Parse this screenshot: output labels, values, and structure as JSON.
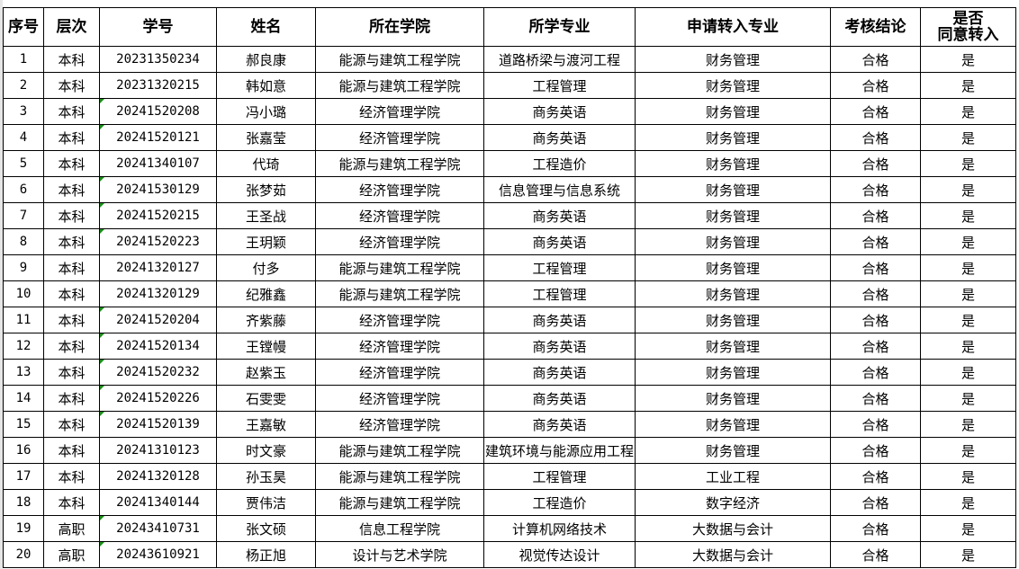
{
  "headers": [
    "序号",
    "层次",
    "学号",
    "姓名",
    "所在学院",
    "所学专业",
    "申请转入专业",
    "考核结论",
    "是否\n同意转入"
  ],
  "header_last_line1": "是否",
  "header_last_line2": "同意转入",
  "rows": [
    {
      "no": "1",
      "level": "本科",
      "id": "20231350234",
      "name": "郝良康",
      "college": "能源与建筑工程学院",
      "major": "道路桥梁与渡河工程",
      "target": "财务管理",
      "result": "合格",
      "agree": "是",
      "flag": false
    },
    {
      "no": "2",
      "level": "本科",
      "id": "20231320215",
      "name": "韩如意",
      "college": "能源与建筑工程学院",
      "major": "工程管理",
      "target": "财务管理",
      "result": "合格",
      "agree": "是",
      "flag": false
    },
    {
      "no": "3",
      "level": "本科",
      "id": "20241520208",
      "name": "冯小璐",
      "college": "经济管理学院",
      "major": "商务英语",
      "target": "财务管理",
      "result": "合格",
      "agree": "是",
      "flag": true
    },
    {
      "no": "4",
      "level": "本科",
      "id": "20241520121",
      "name": "张嘉莹",
      "college": "经济管理学院",
      "major": "商务英语",
      "target": "财务管理",
      "result": "合格",
      "agree": "是",
      "flag": true
    },
    {
      "no": "5",
      "level": "本科",
      "id": "20241340107",
      "name": "代琦",
      "college": "能源与建筑工程学院",
      "major": "工程造价",
      "target": "财务管理",
      "result": "合格",
      "agree": "是",
      "flag": false
    },
    {
      "no": "6",
      "level": "本科",
      "id": "20241530129",
      "name": "张梦茹",
      "college": "经济管理学院",
      "major": "信息管理与信息系统",
      "target": "财务管理",
      "result": "合格",
      "agree": "是",
      "flag": true
    },
    {
      "no": "7",
      "level": "本科",
      "id": "20241520215",
      "name": "王圣战",
      "college": "经济管理学院",
      "major": "商务英语",
      "target": "财务管理",
      "result": "合格",
      "agree": "是",
      "flag": true
    },
    {
      "no": "8",
      "level": "本科",
      "id": "20241520223",
      "name": "王玥颖",
      "college": "经济管理学院",
      "major": "商务英语",
      "target": "财务管理",
      "result": "合格",
      "agree": "是",
      "flag": true
    },
    {
      "no": "9",
      "level": "本科",
      "id": "20241320127",
      "name": "付多",
      "college": "能源与建筑工程学院",
      "major": "工程管理",
      "target": "财务管理",
      "result": "合格",
      "agree": "是",
      "flag": false
    },
    {
      "no": "10",
      "level": "本科",
      "id": "20241320129",
      "name": "纪雅鑫",
      "college": "能源与建筑工程学院",
      "major": "工程管理",
      "target": "财务管理",
      "result": "合格",
      "agree": "是",
      "flag": false
    },
    {
      "no": "11",
      "level": "本科",
      "id": "20241520204",
      "name": "齐紫藤",
      "college": "经济管理学院",
      "major": "商务英语",
      "target": "财务管理",
      "result": "合格",
      "agree": "是",
      "flag": true
    },
    {
      "no": "12",
      "level": "本科",
      "id": "20241520134",
      "name": "王镗幔",
      "college": "经济管理学院",
      "major": "商务英语",
      "target": "财务管理",
      "result": "合格",
      "agree": "是",
      "flag": true
    },
    {
      "no": "13",
      "level": "本科",
      "id": "20241520232",
      "name": "赵紫玉",
      "college": "经济管理学院",
      "major": "商务英语",
      "target": "财务管理",
      "result": "合格",
      "agree": "是",
      "flag": true
    },
    {
      "no": "14",
      "level": "本科",
      "id": "20241520226",
      "name": "石雯雯",
      "college": "经济管理学院",
      "major": "商务英语",
      "target": "财务管理",
      "result": "合格",
      "agree": "是",
      "flag": true
    },
    {
      "no": "15",
      "level": "本科",
      "id": "20241520139",
      "name": "王嘉敏",
      "college": "经济管理学院",
      "major": "商务英语",
      "target": "财务管理",
      "result": "合格",
      "agree": "是",
      "flag": true
    },
    {
      "no": "16",
      "level": "本科",
      "id": "20241310123",
      "name": "时文豪",
      "college": "能源与建筑工程学院",
      "major": "建筑环境与能源应用工程",
      "target": "财务管理",
      "result": "合格",
      "agree": "是",
      "flag": false
    },
    {
      "no": "17",
      "level": "本科",
      "id": "20241320128",
      "name": "孙玉昊",
      "college": "能源与建筑工程学院",
      "major": "工程管理",
      "target": "工业工程",
      "result": "合格",
      "agree": "是",
      "flag": false
    },
    {
      "no": "18",
      "level": "本科",
      "id": "20241340144",
      "name": "贾伟洁",
      "college": "能源与建筑工程学院",
      "major": "工程造价",
      "target": "数字经济",
      "result": "合格",
      "agree": "是",
      "flag": false
    },
    {
      "no": "19",
      "level": "高职",
      "id": "20243410731",
      "name": "张文硕",
      "college": "信息工程学院",
      "major": "计算机网络技术",
      "target": "大数据与会计",
      "result": "合格",
      "agree": "是",
      "flag": true
    },
    {
      "no": "20",
      "level": "高职",
      "id": "20243610921",
      "name": "杨正旭",
      "college": "设计与艺术学院",
      "major": "视觉传达设计",
      "target": "大数据与会计",
      "result": "合格",
      "agree": "是",
      "flag": true
    }
  ]
}
